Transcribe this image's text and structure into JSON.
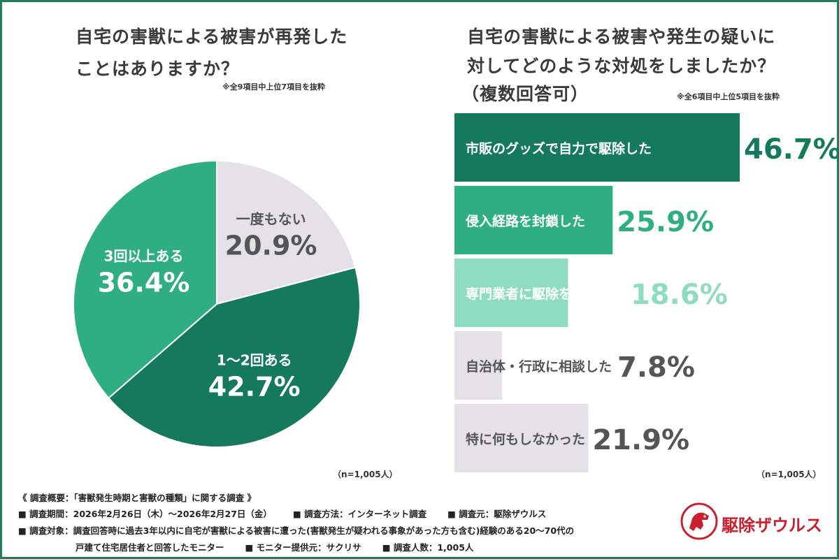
{
  "left": {
    "title_line1": "自宅の害獣による被害が再発した",
    "title_line2": "ことはありますか？",
    "note": "※全9項目中上位7項目を抜粋",
    "n": "（n=1,005人）"
  },
  "right": {
    "title_line1": "自宅の害獣による被害や発生の疑いに",
    "title_line2": "対してどのような対処をしましたか？",
    "title_line3": "（複数回答可）",
    "note": "※全6項目中上位5項目を抜粋",
    "n": "（n=1,005人）"
  },
  "footer": {
    "line1": "《 調査概要：「害獣発生時期と害獣の種類」に関する調査 》",
    "line2a": "■ 調査期間：2026年2月26日（木）〜2026年2月27日（金）",
    "line2b": "■ 調査方法：インターネット調査",
    "line2c": "■ 調査元：駆除ザウルス",
    "line3": "■ 調査対象：調査回答時に過去3年以内に自宅が害獣による被害に遭った(害獣発生が疑われる事象があった方も含む)経験のある20〜70代の",
    "line4a": "戸建て住宅居住者と回答したモニター",
    "line4b": "■ モニター提供元：サクリサ",
    "line4c": "■ 調査人数：1,005人"
  },
  "logo": {
    "text": "駆除ザウルス",
    "icon": "dinosaur-mascot-icon"
  },
  "colors": {
    "dark": "#157a5b",
    "mid": "#2fae84",
    "light": "#8fdcc3",
    "gray": "#e4e2e6",
    "text_gray": "#555555",
    "border": "#1e7d5c"
  },
  "chart_data": [
    {
      "type": "pie",
      "slices": [
        {
          "label": "一度もない",
          "value": 20.9,
          "display": "20.9%"
        },
        {
          "label": "1〜2回ある",
          "value": 42.7,
          "display": "42.7%"
        },
        {
          "label": "3回以上ある",
          "value": 36.4,
          "display": "36.4%"
        }
      ]
    },
    {
      "type": "bar",
      "orientation": "horizontal",
      "categories": [
        "市販のグッズで自力で駆除した",
        "侵入経路を封鎖した",
        "専門業者に駆除を依頼した",
        "自治体・行政に相談した",
        "特に何もしなかった"
      ],
      "values": [
        46.7,
        25.9,
        18.6,
        7.8,
        21.9
      ],
      "display": [
        "46.7%",
        "25.9%",
        "18.6%",
        "7.8%",
        "21.9%"
      ]
    }
  ]
}
